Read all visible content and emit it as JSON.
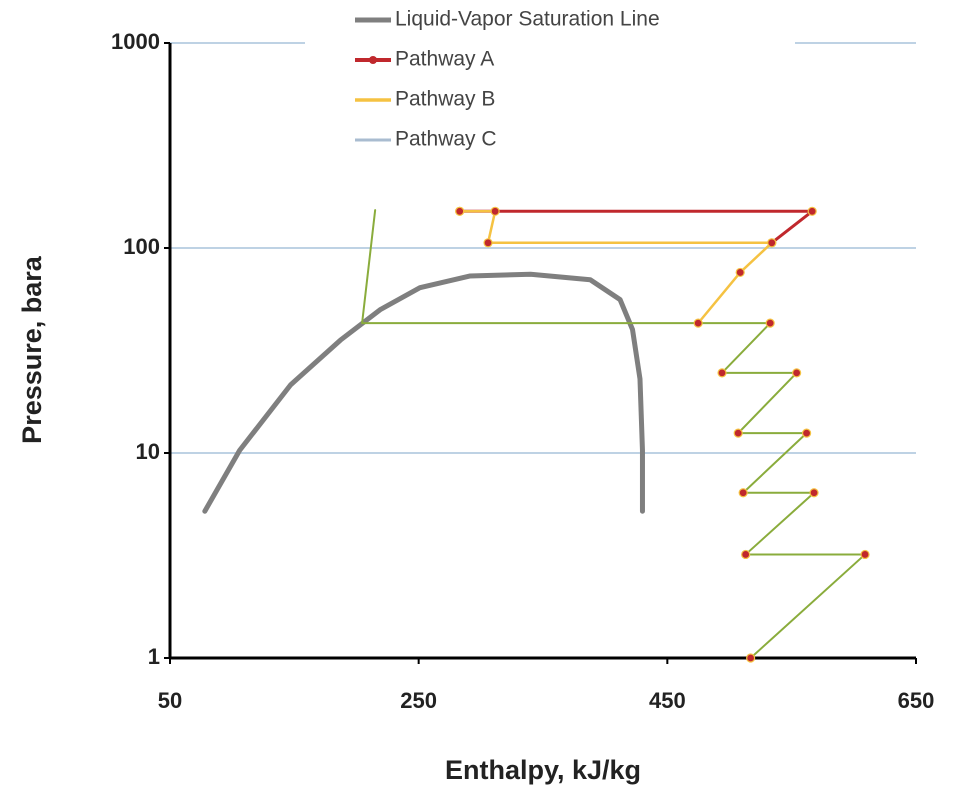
{
  "chart_data": {
    "type": "line",
    "x_label": "Enthalpy, kJ/kg",
    "y_label": "Pressure, bara",
    "xlim": [
      50,
      650
    ],
    "xticks": [
      50,
      250,
      450,
      650
    ],
    "ylim": [
      1,
      1000
    ],
    "yticks": [
      1,
      10,
      100,
      1000
    ],
    "y_log": true,
    "grid": true,
    "legend_position": "top",
    "series": [
      {
        "name": "Liquid-Vapor Saturation Line",
        "color": "#7f7f7f",
        "legend_color": "#7f7f7f",
        "width": 5,
        "markers": false,
        "x": [
          78,
          106,
          147,
          187,
          219,
          251,
          291,
          340,
          388,
          412,
          422,
          428,
          430,
          430
        ],
        "values": [
          5.2,
          10.3,
          21.5,
          35.5,
          50,
          64,
          73,
          74.5,
          70,
          56,
          40,
          23,
          10.3,
          5.2
        ]
      },
      {
        "name": "Pathway A",
        "color": "#c0282d",
        "legend_color": "#c0282d",
        "width": 3,
        "markers": true,
        "x": [
          283,
          566.5,
          534
        ],
        "values": [
          151,
          151,
          106
        ]
      },
      {
        "name": "Pathway B",
        "color": "#f5c242",
        "legend_color": "#f5c242",
        "width": 2.5,
        "markers": true,
        "x": [
          283,
          311.5,
          305.8,
          534,
          508.6,
          474.8
        ],
        "values": [
          151,
          151,
          106,
          106,
          76,
          43
        ]
      },
      {
        "name": "Pathway C",
        "color": "#8aac3c",
        "legend_color": "#a9bcd0",
        "width": 2,
        "markers": true,
        "x": [
          215,
          204.5,
          532.7,
          494,
          554,
          507,
          562,
          511,
          568,
          513,
          609,
          517
        ],
        "values": [
          153,
          43,
          43,
          24.6,
          24.6,
          12.5,
          12.5,
          6.4,
          6.4,
          3.2,
          3.2,
          1
        ]
      }
    ]
  }
}
